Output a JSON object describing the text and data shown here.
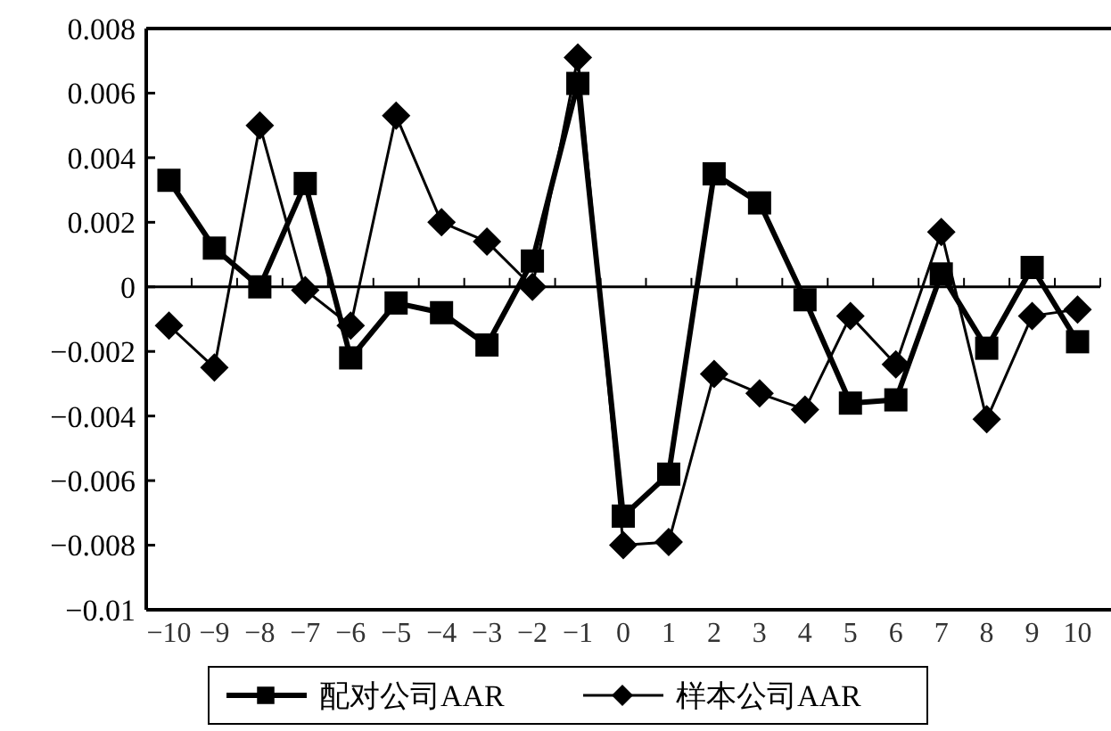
{
  "chart_data": {
    "type": "line",
    "categories": [
      "−10",
      "−9",
      "−8",
      "−7",
      "−6",
      "−5",
      "−4",
      "−3",
      "−2",
      "−1",
      "0",
      "1",
      "2",
      "3",
      "4",
      "5",
      "6",
      "7",
      "8",
      "9",
      "10"
    ],
    "series": [
      {
        "name": "配对公司AAR",
        "color": "#000000",
        "marker": "square",
        "values": [
          0.0033,
          0.0012,
          0,
          0.0032,
          -0.0022,
          -0.0005,
          -0.0008,
          -0.0018,
          0.0008,
          0.0063,
          -0.0071,
          -0.0058,
          0.0035,
          0.0026,
          -0.0004,
          -0.0036,
          -0.0035,
          0.0004,
          -0.0019,
          0.0006,
          -0.0017
        ]
      },
      {
        "name": "样本公司AAR",
        "color": "#000000",
        "marker": "diamond",
        "values": [
          -0.0012,
          -0.0025,
          0.005,
          -0.0001,
          -0.0012,
          0.0053,
          0.002,
          0.0014,
          0,
          0.0071,
          -0.008,
          -0.0079,
          -0.0027,
          -0.0033,
          -0.0038,
          -0.0009,
          -0.0024,
          0.0017,
          -0.0041,
          -0.0009,
          -0.0007
        ]
      }
    ],
    "ylim": [
      -0.01,
      0.008
    ],
    "yticks": [
      {
        "value": -0.01,
        "label": "−0.01"
      },
      {
        "value": -0.008,
        "label": "−0.008"
      },
      {
        "value": -0.006,
        "label": "−0.006"
      },
      {
        "value": -0.004,
        "label": "−0.004"
      },
      {
        "value": -0.002,
        "label": "−0.002"
      },
      0,
      0.002,
      0.004,
      0.006,
      0.008
    ],
    "legend": "bottom"
  }
}
